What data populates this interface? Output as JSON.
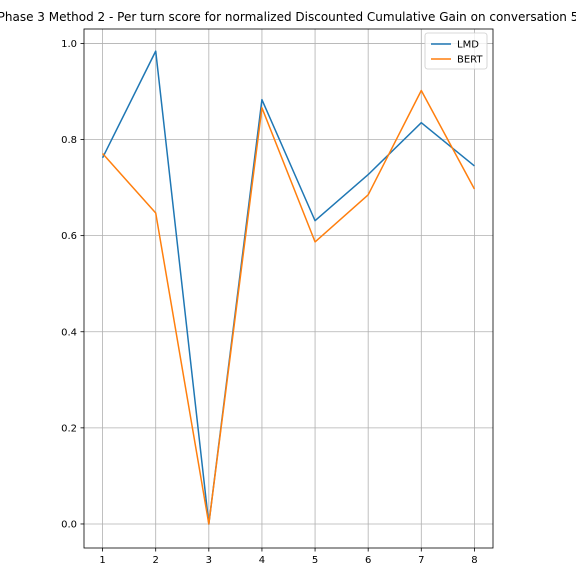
{
  "chart_data": {
    "type": "line",
    "title": "Phase 3 Method 2 - Per turn score for normalized Discounted Cumulative Gain on conversation 5",
    "xlabel": "",
    "ylabel": "",
    "x": [
      1,
      2,
      3,
      4,
      5,
      6,
      7,
      8
    ],
    "xlim": [
      0.65,
      8.35
    ],
    "ylim": [
      -0.05,
      1.03
    ],
    "yticks": [
      0.0,
      0.2,
      0.4,
      0.6,
      0.8,
      1.0
    ],
    "ytick_labels": [
      "0.0",
      "0.2",
      "0.4",
      "0.6",
      "0.8",
      "1.0"
    ],
    "xtick_labels": [
      "1",
      "2",
      "3",
      "4",
      "5",
      "6",
      "7",
      "8"
    ],
    "grid": true,
    "legend_position": "upper right",
    "series": [
      {
        "name": "LMD",
        "color": "#1f77b4",
        "values": [
          0.762,
          0.984,
          0.0,
          0.883,
          0.631,
          0.727,
          0.835,
          0.745
        ]
      },
      {
        "name": "BERT",
        "color": "#ff7f0e",
        "values": [
          0.771,
          0.647,
          0.0,
          0.866,
          0.587,
          0.685,
          0.902,
          0.697
        ]
      }
    ]
  }
}
